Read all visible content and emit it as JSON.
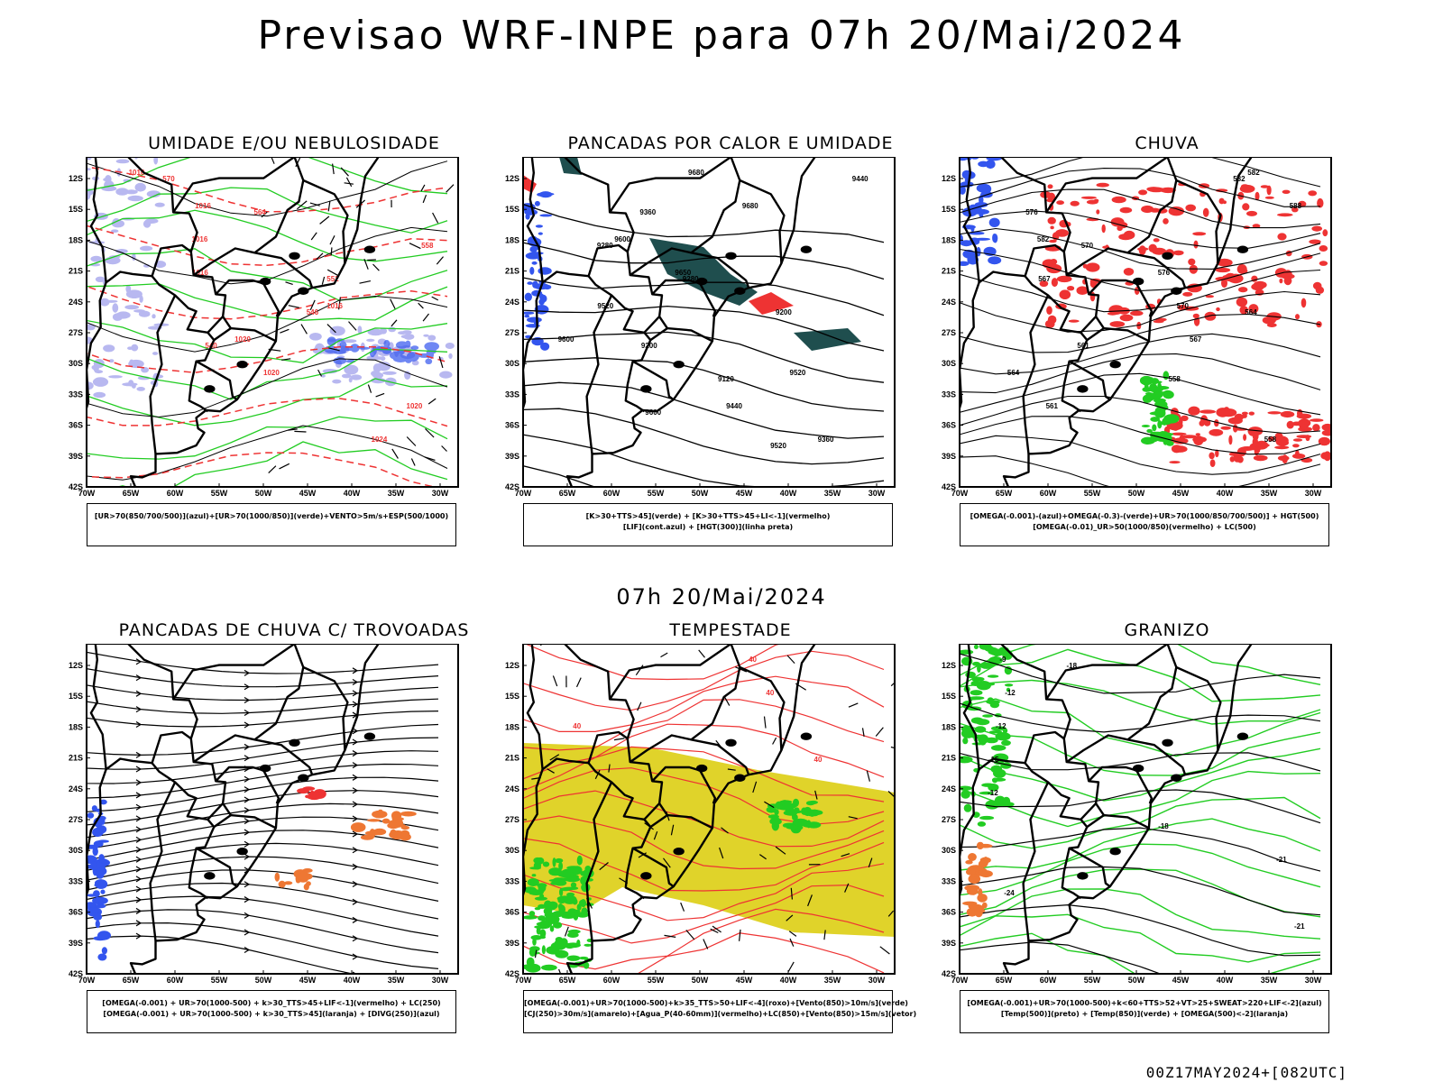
{
  "title": "Previsao WRF-INPE  para 07h 20/Mai/2024",
  "mid_title": "07h 20/Mai/2024",
  "footer": "00Z17MAY2024+[082UTC]",
  "axes": {
    "y_ticks": [
      "12S",
      "15S",
      "18S",
      "21S",
      "24S",
      "27S",
      "30S",
      "33S",
      "36S",
      "39S",
      "42S"
    ],
    "x_ticks": [
      "70W",
      "65W",
      "60W",
      "55W",
      "50W",
      "45W",
      "40W",
      "35W",
      "30W"
    ]
  },
  "colors": {
    "blue": "#3355ee",
    "green": "#22cc22",
    "red": "#ee3333",
    "dark_teal": "#1f4e4e",
    "yellow": "#e0d32a",
    "orange": "#ee7733",
    "lavender": "#b8b8f0",
    "map_line": "#000000"
  },
  "panels": [
    {
      "id": "umidade",
      "title": "UMIDADE E/OU NEBULOSIDADE",
      "legend": [
        "[UR>70(850/700/500)](azul)+[UR>70(1000/850)](verde)+VENTO>5m/s+ESP(500/1000)"
      ],
      "labels": [
        "1016",
        "1016",
        "1016",
        "1016",
        "1016",
        "1020",
        "1020",
        "1020",
        "1024",
        "570",
        "564",
        "558",
        "552",
        "546",
        "540"
      ]
    },
    {
      "id": "pancadas_calor",
      "title": "PANCADAS POR CALOR E UMIDADE",
      "legend": [
        "[K>30+TTS>45](verde) + [K>30+TTS>45+LI<-1](vermelho)",
        "[LIF](cont.azul) + [HGT(300)](linha preta)"
      ],
      "labels": [
        "9680",
        "9680",
        "9600",
        "9650",
        "9520",
        "9600",
        "9520",
        "9440",
        "9360",
        "9440",
        "9360",
        "9280",
        "9280",
        "9200",
        "9200",
        "9120",
        "9600",
        "9520"
      ]
    },
    {
      "id": "chuva",
      "title": "CHUVA",
      "legend": [
        "[OMEGA(-0.001)-(azul)+OMEGA(-0.3)-(verde)+UR>70(1000/850/700/500)] + HGT(500)",
        "[OMEGA(-0.01)_UR>50(1000/850)(vermelho) + LC(500)"
      ],
      "labels": [
        "582",
        "588",
        "582",
        "576",
        "570",
        "567",
        "564",
        "561",
        "558",
        "582",
        "576",
        "570",
        "567",
        "564",
        "561",
        "558"
      ]
    },
    {
      "id": "trovoadas",
      "title": "PANCADAS DE CHUVA C/ TROVOADAS",
      "legend": [
        "[OMEGA(-0.001) + UR>70(1000-500) + k>30_TTS>45+LIF<-1](vermelho) + LC(250)",
        "[OMEGA(-0.001) + UR>70(1000-500) + k>30_TTS>45](laranja) + [DIVG(250)](azul)"
      ],
      "labels": []
    },
    {
      "id": "tempestade",
      "title": "TEMPESTADE",
      "legend": [
        "[OMEGA(-0.001)+UR>70(1000-500)+k>35_TTS>50+LIF<-4](roxo)+[Vento(850)>10m/s](verde)",
        "[CJ(250)>30m/s](amarelo)+[Agua_P(40-60mm)](vermelho)+LC(850)+[Vento(850)>15m/s](vetor)"
      ],
      "labels": [
        "40",
        "40",
        "40",
        "40"
      ]
    },
    {
      "id": "granizo",
      "title": "GRANIZO",
      "legend": [
        "[OMEGA(-0.001)+UR>70(1000-500)+k<60+TTS>52+VT>25+SWEAT>220+LIF<-2](azul)",
        "[Temp(500)](preto) + [Temp(850)](verde) + [OMEGA(500)<-2](laranja)"
      ],
      "labels": [
        "-9",
        "-12",
        "-12",
        "-15",
        "-12",
        "-18",
        "-21",
        "-24",
        "-21",
        "-18"
      ]
    }
  ]
}
